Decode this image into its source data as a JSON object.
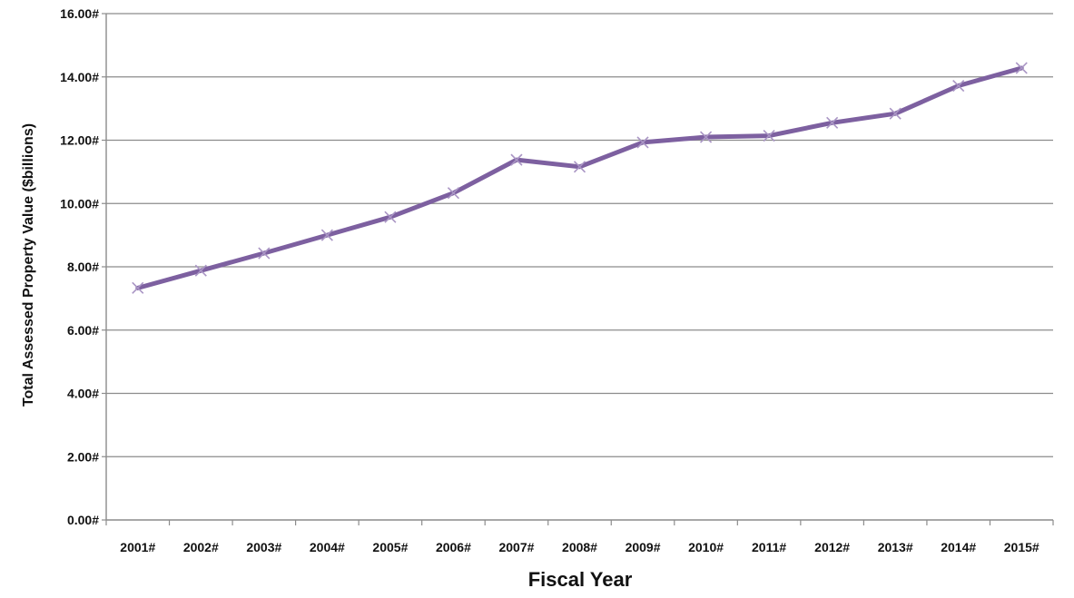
{
  "chart_data": {
    "type": "line",
    "title": "",
    "xlabel": "Fiscal Year",
    "ylabel": "Total Assessed Property Value ($billions)",
    "categories": [
      "2001#",
      "2002#",
      "2003#",
      "2004#",
      "2005#",
      "2006#",
      "2007#",
      "2008#",
      "2009#",
      "2010#",
      "2011#",
      "2012#",
      "2013#",
      "2014#",
      "2015#"
    ],
    "series": [
      {
        "values": [
          7.33,
          7.88,
          8.43,
          9.0,
          9.57,
          10.33,
          11.38,
          11.16,
          11.93,
          12.1,
          12.14,
          12.55,
          12.84,
          13.72,
          14.28
        ],
        "color": "#7d60a0",
        "marker": "x"
      }
    ],
    "yticks": [
      0,
      2,
      4,
      6,
      8,
      10,
      12,
      14,
      16
    ],
    "ytick_labels": [
      "0.00#",
      "2.00#",
      "4.00#",
      "6.00#",
      "8.00#",
      "10.00#",
      "12.00#",
      "14.00#",
      "16.00#"
    ],
    "ylim": [
      0,
      16
    ],
    "grid": "horizontal",
    "legend": "none"
  }
}
